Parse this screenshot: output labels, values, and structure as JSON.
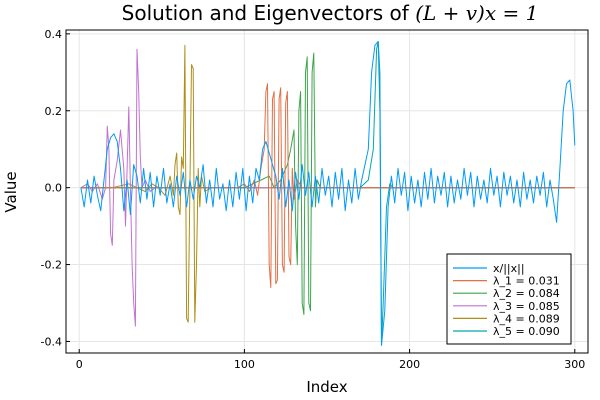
{
  "chart_data": {
    "type": "line",
    "title": "Solution and Eigenvectors of (L + v)x = 1",
    "title_parts": {
      "text": "Solution and Eigenvectors of ",
      "math": "(L + v)x = 1"
    },
    "xlabel": "Index",
    "ylabel": "Value",
    "xlim": [
      -8,
      308
    ],
    "ylim": [
      -0.43,
      0.41
    ],
    "xticks": [
      0,
      100,
      200,
      300
    ],
    "xtick_labels": [
      "0",
      "100",
      "200",
      "300"
    ],
    "yticks": [
      -0.4,
      -0.2,
      0.0,
      0.2,
      0.4
    ],
    "ytick_labels": [
      "-0.4",
      "-0.2",
      "0.0",
      "0.2",
      "0.4"
    ],
    "grid": true,
    "legend_position": "bottom-right",
    "series": [
      {
        "name": "x/||x||",
        "color": "#009AFA",
        "points": [
          [
            1,
            0.0
          ],
          [
            3,
            -0.05
          ],
          [
            5,
            0.02
          ],
          [
            7,
            -0.04
          ],
          [
            9,
            0.03
          ],
          [
            11,
            -0.02
          ],
          [
            13,
            -0.06
          ],
          [
            15,
            0.02
          ],
          [
            17,
            0.1
          ],
          [
            19,
            0.13
          ],
          [
            21,
            0.14
          ],
          [
            23,
            0.12
          ],
          [
            25,
            0.05
          ],
          [
            27,
            -0.06
          ],
          [
            29,
            0.02
          ],
          [
            31,
            -0.07
          ],
          [
            33,
            0.06
          ],
          [
            35,
            0.03
          ],
          [
            37,
            -0.04
          ],
          [
            39,
            0.05
          ],
          [
            41,
            -0.03
          ],
          [
            43,
            0.04
          ],
          [
            45,
            -0.05
          ],
          [
            47,
            0.03
          ],
          [
            49,
            -0.02
          ],
          [
            51,
            0.05
          ],
          [
            53,
            -0.04
          ],
          [
            55,
            0.01
          ],
          [
            57,
            -0.05
          ],
          [
            59,
            0.03
          ],
          [
            61,
            -0.02
          ],
          [
            63,
            0.04
          ],
          [
            65,
            -0.05
          ],
          [
            67,
            0.02
          ],
          [
            69,
            -0.03
          ],
          [
            71,
            0.03
          ],
          [
            73,
            0.0
          ],
          [
            75,
            0.06
          ],
          [
            77,
            -0.04
          ],
          [
            79,
            0.02
          ],
          [
            81,
            -0.05
          ],
          [
            83,
            0.05
          ],
          [
            85,
            -0.03
          ],
          [
            87,
            0.01
          ],
          [
            89,
            -0.06
          ],
          [
            91,
            0.02
          ],
          [
            93,
            -0.05
          ],
          [
            95,
            0.04
          ],
          [
            97,
            -0.03
          ],
          [
            99,
            0.05
          ],
          [
            101,
            -0.06
          ],
          [
            103,
            0.03
          ],
          [
            105,
            -0.04
          ],
          [
            107,
            0.05
          ],
          [
            109,
            0.02
          ],
          [
            111,
            0.1
          ],
          [
            113,
            0.12
          ],
          [
            115,
            0.09
          ],
          [
            117,
            0.06
          ],
          [
            119,
            0.03
          ],
          [
            121,
            -0.03
          ],
          [
            123,
            0.05
          ],
          [
            125,
            -0.05
          ],
          [
            127,
            0.02
          ],
          [
            129,
            -0.06
          ],
          [
            131,
            0.04
          ],
          [
            133,
            -0.03
          ],
          [
            135,
            0.06
          ],
          [
            137,
            -0.02
          ],
          [
            139,
            0.04
          ],
          [
            141,
            -0.05
          ],
          [
            143,
            0.03
          ],
          [
            145,
            -0.04
          ],
          [
            147,
            0.05
          ],
          [
            149,
            -0.02
          ],
          [
            151,
            0.03
          ],
          [
            153,
            -0.05
          ],
          [
            155,
            0.04
          ],
          [
            157,
            -0.03
          ],
          [
            159,
            0.05
          ],
          [
            161,
            -0.06
          ],
          [
            163,
            0.02
          ],
          [
            165,
            -0.04
          ],
          [
            167,
            0.05
          ],
          [
            169,
            -0.03
          ],
          [
            171,
            0.02
          ],
          [
            173,
            0.06
          ],
          [
            175,
            0.1
          ],
          [
            177,
            0.3
          ],
          [
            179,
            0.37
          ],
          [
            181,
            0.38
          ],
          [
            182,
            0.3
          ],
          [
            183,
            -0.41
          ],
          [
            185,
            -0.32
          ],
          [
            187,
            -0.05
          ],
          [
            189,
            0.03
          ],
          [
            191,
            -0.04
          ],
          [
            193,
            0.05
          ],
          [
            195,
            -0.02
          ],
          [
            197,
            0.04
          ],
          [
            199,
            -0.06
          ],
          [
            201,
            0.03
          ],
          [
            203,
            -0.04
          ],
          [
            205,
            0.02
          ],
          [
            207,
            -0.05
          ],
          [
            209,
            0.04
          ],
          [
            211,
            -0.03
          ],
          [
            213,
            0.05
          ],
          [
            215,
            -0.04
          ],
          [
            217,
            0.03
          ],
          [
            219,
            -0.02
          ],
          [
            221,
            0.04
          ],
          [
            223,
            -0.05
          ],
          [
            225,
            0.03
          ],
          [
            227,
            -0.04
          ],
          [
            229,
            0.02
          ],
          [
            231,
            -0.03
          ],
          [
            233,
            0.05
          ],
          [
            235,
            -0.02
          ],
          [
            237,
            0.04
          ],
          [
            239,
            -0.05
          ],
          [
            241,
            0.03
          ],
          [
            243,
            -0.03
          ],
          [
            245,
            0.02
          ],
          [
            247,
            -0.04
          ],
          [
            249,
            0.05
          ],
          [
            251,
            -0.02
          ],
          [
            253,
            0.03
          ],
          [
            255,
            -0.05
          ],
          [
            257,
            0.04
          ],
          [
            259,
            -0.02
          ],
          [
            261,
            0.03
          ],
          [
            263,
            -0.04
          ],
          [
            265,
            0.02
          ],
          [
            267,
            -0.05
          ],
          [
            269,
            0.04
          ],
          [
            271,
            -0.03
          ],
          [
            273,
            0.02
          ],
          [
            275,
            -0.04
          ],
          [
            277,
            0.03
          ],
          [
            279,
            -0.02
          ],
          [
            281,
            0.04
          ],
          [
            283,
            -0.05
          ],
          [
            285,
            0.02
          ],
          [
            287,
            -0.03
          ],
          [
            289,
            -0.09
          ],
          [
            291,
            0.05
          ],
          [
            293,
            0.2
          ],
          [
            295,
            0.27
          ],
          [
            297,
            0.28
          ],
          [
            299,
            0.2
          ],
          [
            300,
            0.11
          ]
        ]
      },
      {
        "name": "λ_1 = 0.031",
        "color": "#E26F46",
        "points": [
          [
            1,
            0.0
          ],
          [
            20,
            0.0
          ],
          [
            40,
            0.0
          ],
          [
            60,
            0.0
          ],
          [
            80,
            0.0
          ],
          [
            96,
            0.0
          ],
          [
            100,
            0.01
          ],
          [
            103,
            -0.01
          ],
          [
            106,
            0.02
          ],
          [
            108,
            -0.02
          ],
          [
            110,
            0.05
          ],
          [
            112,
            0.1
          ],
          [
            113,
            0.25
          ],
          [
            114,
            0.27
          ],
          [
            115,
            -0.2
          ],
          [
            116,
            -0.26
          ],
          [
            117,
            0.23
          ],
          [
            118,
            0.25
          ],
          [
            119,
            -0.25
          ],
          [
            120,
            -0.24
          ],
          [
            121,
            0.23
          ],
          [
            122,
            0.26
          ],
          [
            123,
            -0.2
          ],
          [
            124,
            -0.22
          ],
          [
            125,
            0.22
          ],
          [
            126,
            0.25
          ],
          [
            127,
            -0.18
          ],
          [
            128,
            -0.2
          ],
          [
            129,
            0.05
          ],
          [
            130,
            -0.03
          ],
          [
            132,
            0.02
          ],
          [
            135,
            0.0
          ],
          [
            160,
            0.0
          ],
          [
            200,
            0.0
          ],
          [
            250,
            0.0
          ],
          [
            300,
            0.0
          ]
        ]
      },
      {
        "name": "λ_2 = 0.084",
        "color": "#3DA44D",
        "points": [
          [
            1,
            0.0
          ],
          [
            40,
            0.0
          ],
          [
            80,
            0.0
          ],
          [
            100,
            0.0
          ],
          [
            105,
            0.01
          ],
          [
            110,
            0.02
          ],
          [
            115,
            0.03
          ],
          [
            118,
            0.0
          ],
          [
            122,
            0.02
          ],
          [
            126,
            0.06
          ],
          [
            128,
            0.1
          ],
          [
            130,
            0.15
          ],
          [
            131,
            -0.1
          ],
          [
            132,
            -0.2
          ],
          [
            133,
            0.2
          ],
          [
            134,
            0.25
          ],
          [
            135,
            -0.3
          ],
          [
            136,
            -0.33
          ],
          [
            137,
            0.3
          ],
          [
            138,
            0.34
          ],
          [
            139,
            -0.3
          ],
          [
            140,
            -0.32
          ],
          [
            141,
            0.3
          ],
          [
            142,
            0.35
          ],
          [
            143,
            -0.05
          ],
          [
            144,
            0.02
          ],
          [
            146,
            0.0
          ],
          [
            170,
            0.0
          ],
          [
            200,
            0.0
          ],
          [
            250,
            0.0
          ],
          [
            300,
            0.0
          ]
        ]
      },
      {
        "name": "λ_3 = 0.085",
        "color": "#C271D2",
        "points": [
          [
            1,
            0.0
          ],
          [
            5,
            0.01
          ],
          [
            8,
            -0.01
          ],
          [
            11,
            0.01
          ],
          [
            14,
            -0.03
          ],
          [
            16,
            0.0
          ],
          [
            17,
            0.16
          ],
          [
            18,
            0.1
          ],
          [
            19,
            -0.12
          ],
          [
            20,
            -0.15
          ],
          [
            21,
            0.02
          ],
          [
            23,
            0.07
          ],
          [
            25,
            0.15
          ],
          [
            27,
            0.05
          ],
          [
            28,
            -0.1
          ],
          [
            29,
            0.05
          ],
          [
            30,
            0.21
          ],
          [
            31,
            0.0
          ],
          [
            32,
            -0.2
          ],
          [
            33,
            -0.3
          ],
          [
            34,
            -0.36
          ],
          [
            35,
            0.36
          ],
          [
            36,
            0.25
          ],
          [
            37,
            0.08
          ],
          [
            38,
            0.0
          ],
          [
            40,
            0.02
          ],
          [
            43,
            -0.01
          ],
          [
            46,
            0.0
          ],
          [
            60,
            0.0
          ],
          [
            100,
            0.0
          ],
          [
            150,
            0.0
          ],
          [
            200,
            0.0
          ],
          [
            300,
            0.0
          ]
        ]
      },
      {
        "name": "λ_4 = 0.089",
        "color": "#AC8E18",
        "points": [
          [
            1,
            0.0
          ],
          [
            20,
            0.0
          ],
          [
            30,
            0.01
          ],
          [
            35,
            0.0
          ],
          [
            40,
            -0.01
          ],
          [
            44,
            0.01
          ],
          [
            48,
            0.0
          ],
          [
            52,
            -0.02
          ],
          [
            55,
            0.03
          ],
          [
            57,
            -0.02
          ],
          [
            58,
            0.06
          ],
          [
            59,
            0.09
          ],
          [
            60,
            -0.05
          ],
          [
            61,
            -0.07
          ],
          [
            62,
            0.08
          ],
          [
            63,
            0.05
          ],
          [
            64,
            0.37
          ],
          [
            65,
            -0.34
          ],
          [
            66,
            -0.35
          ],
          [
            67,
            0.0
          ],
          [
            68,
            0.32
          ],
          [
            69,
            0.31
          ],
          [
            70,
            -0.35
          ],
          [
            71,
            -0.2
          ],
          [
            72,
            0.05
          ],
          [
            73,
            -0.05
          ],
          [
            74,
            0.03
          ],
          [
            76,
            -0.01
          ],
          [
            80,
            0.0
          ],
          [
            100,
            0.0
          ],
          [
            150,
            0.0
          ],
          [
            200,
            0.0
          ],
          [
            300,
            0.0
          ]
        ]
      },
      {
        "name": "λ_5 = 0.090",
        "color": "#00A9AD",
        "points": [
          [
            1,
            0.0
          ],
          [
            50,
            0.0
          ],
          [
            100,
            0.0
          ],
          [
            150,
            0.0
          ],
          [
            170,
            0.0
          ],
          [
            175,
            0.02
          ],
          [
            178,
            0.1
          ],
          [
            180,
            0.36
          ],
          [
            181,
            0.38
          ],
          [
            182,
            0.2
          ],
          [
            183,
            -0.41
          ],
          [
            184,
            -0.3
          ],
          [
            186,
            -0.05
          ],
          [
            188,
            0.01
          ],
          [
            190,
            0.0
          ],
          [
            200,
            0.0
          ],
          [
            250,
            0.0
          ],
          [
            300,
            0.0
          ]
        ]
      }
    ]
  }
}
